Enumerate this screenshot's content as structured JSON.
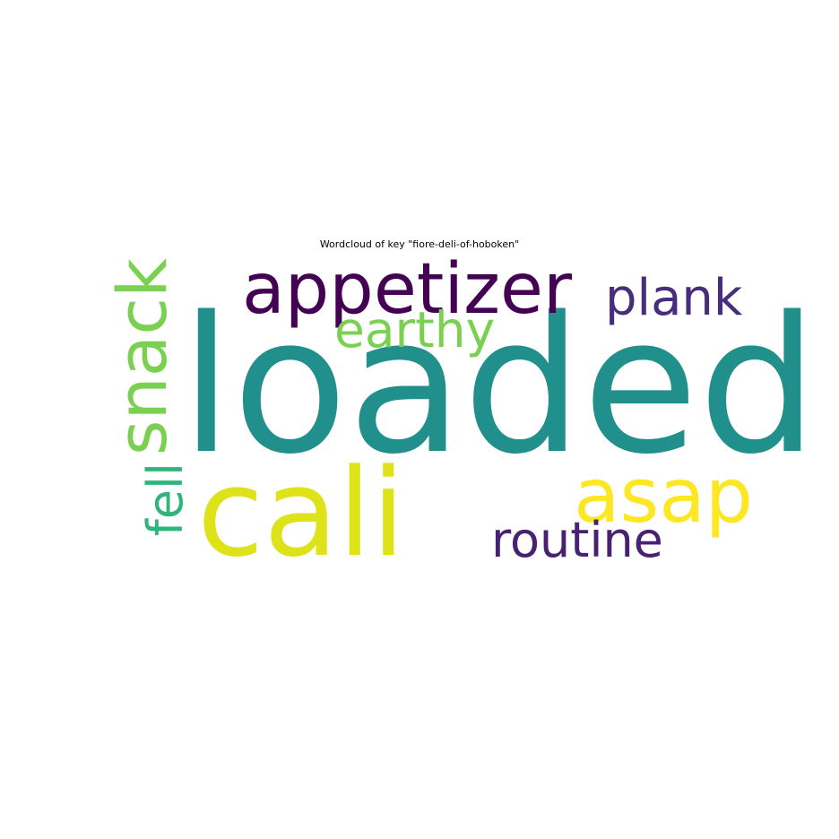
{
  "figure": {
    "title": "Wordcloud of key \"fiore-deli-of-hoboken\""
  },
  "cloud": {
    "words": [
      {
        "text": "loaded",
        "color": "#21908d",
        "weight": 1.0,
        "orientation": "horizontal"
      },
      {
        "text": "cali",
        "color": "#dde318",
        "weight": 0.78,
        "orientation": "horizontal"
      },
      {
        "text": "appetizer",
        "color": "#440154",
        "weight": 0.55,
        "orientation": "horizontal"
      },
      {
        "text": "snack",
        "color": "#7ad151",
        "weight": 0.52,
        "orientation": "vertical"
      },
      {
        "text": "asap",
        "color": "#fde725",
        "weight": 0.48,
        "orientation": "horizontal"
      },
      {
        "text": "plank",
        "color": "#472d7b",
        "weight": 0.4,
        "orientation": "horizontal"
      },
      {
        "text": "routine",
        "color": "#482173",
        "weight": 0.38,
        "orientation": "horizontal"
      },
      {
        "text": "earthy",
        "color": "#7ad151",
        "weight": 0.38,
        "orientation": "horizontal"
      },
      {
        "text": "fell",
        "color": "#2fb47c",
        "weight": 0.37,
        "orientation": "vertical"
      }
    ]
  }
}
